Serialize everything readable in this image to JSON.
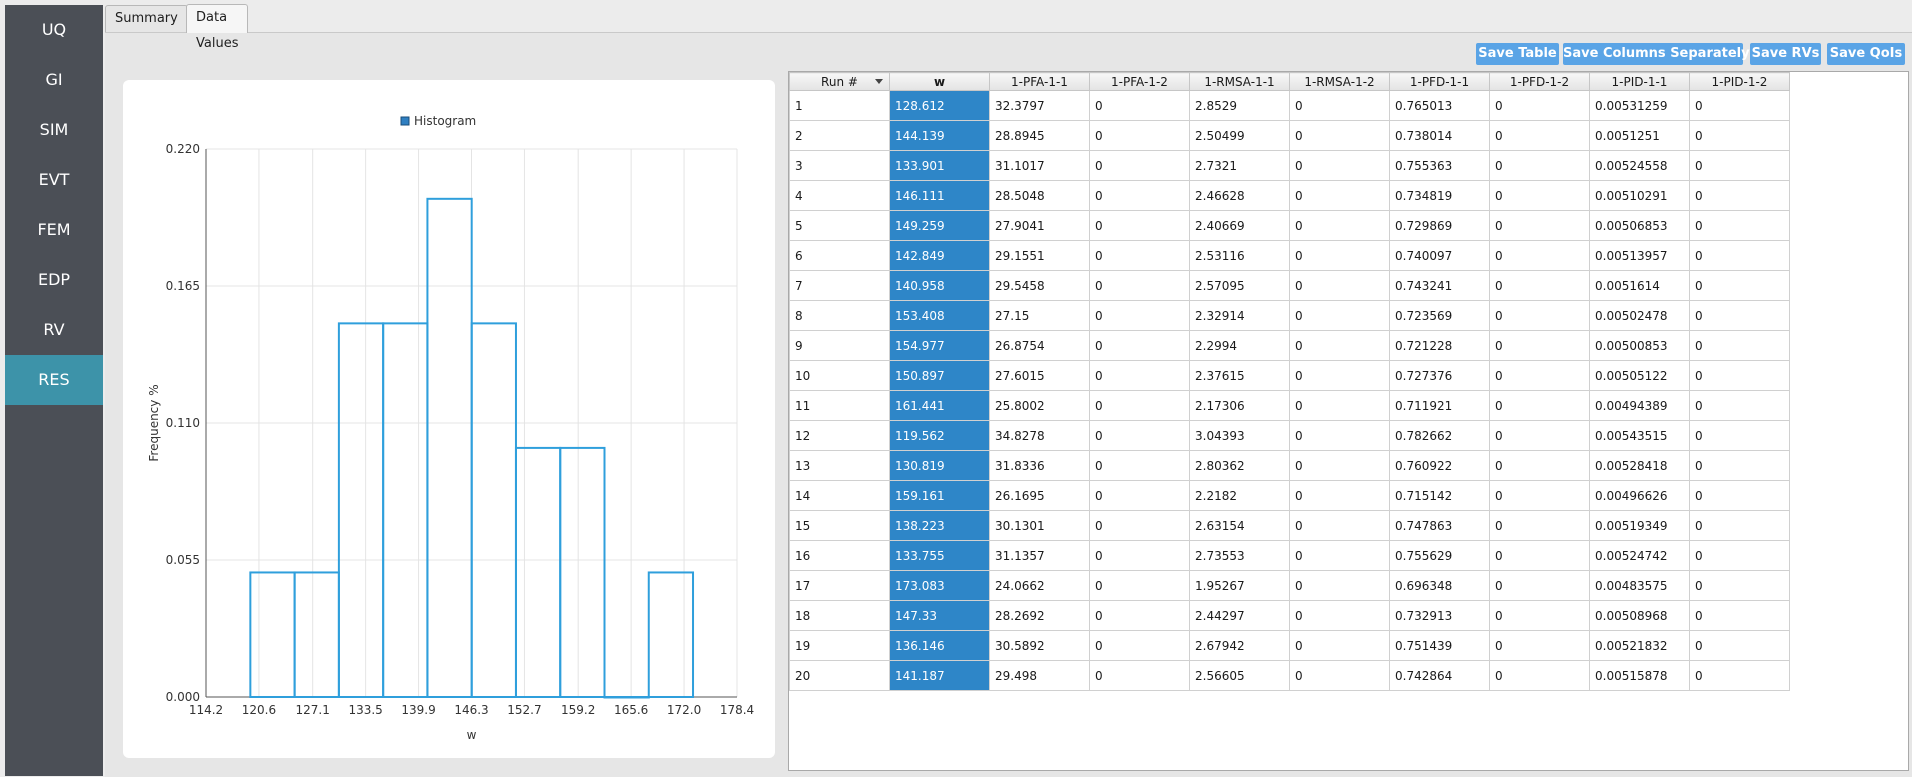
{
  "sidebar": {
    "items": [
      {
        "label": "UQ"
      },
      {
        "label": "GI"
      },
      {
        "label": "SIM"
      },
      {
        "label": "EVT"
      },
      {
        "label": "FEM"
      },
      {
        "label": "EDP"
      },
      {
        "label": "RV"
      },
      {
        "label": "RES"
      }
    ],
    "active": "RES",
    "colors": {
      "background": "#4b4f56",
      "active": "#3d93a9"
    }
  },
  "tabs": [
    {
      "label": "Summary",
      "selected": false
    },
    {
      "label": "Data Values",
      "selected": true
    }
  ],
  "toolbar": {
    "save_table": "Save Table",
    "save_columns": "Save Columns Separately",
    "save_rvs": "Save RVs",
    "save_qois": "Save QoIs"
  },
  "chart_data": {
    "type": "bar",
    "title": "",
    "legend": [
      "Histogram"
    ],
    "legend_position": "top-center",
    "xlabel": "w",
    "ylabel": "Frequency %",
    "xlim": [
      114.2,
      178.4
    ],
    "ylim": [
      0,
      0.22
    ],
    "x_ticks": [
      "114.2",
      "120.6",
      "127.1",
      "133.5",
      "139.9",
      "146.3",
      "152.7",
      "159.2",
      "165.6",
      "172.0",
      "178.4"
    ],
    "y_ticks": [
      "0.000",
      "0.055",
      "0.110",
      "0.165",
      "0.220"
    ],
    "bin_edges": [
      119.562,
      124.914,
      130.267,
      135.619,
      140.971,
      146.323,
      151.676,
      157.028,
      162.38,
      167.732,
      173.083
    ],
    "values": [
      0.05,
      0.05,
      0.15,
      0.15,
      0.2,
      0.15,
      0.1,
      0.1,
      0.0,
      0.05
    ],
    "grid": true,
    "series_color": "#2f9fdc"
  },
  "table": {
    "columns": [
      "Run #",
      "w",
      "1-PFA-1-1",
      "1-PFA-1-2",
      "1-RMSA-1-1",
      "1-RMSA-1-2",
      "1-PFD-1-1",
      "1-PFD-1-2",
      "1-PID-1-1",
      "1-PID-1-2"
    ],
    "selected_column": "w",
    "rows": [
      [
        "1",
        "128.612",
        "32.3797",
        "0",
        "2.8529",
        "0",
        "0.765013",
        "0",
        "0.00531259",
        "0"
      ],
      [
        "2",
        "144.139",
        "28.8945",
        "0",
        "2.50499",
        "0",
        "0.738014",
        "0",
        "0.0051251",
        "0"
      ],
      [
        "3",
        "133.901",
        "31.1017",
        "0",
        "2.7321",
        "0",
        "0.755363",
        "0",
        "0.00524558",
        "0"
      ],
      [
        "4",
        "146.111",
        "28.5048",
        "0",
        "2.46628",
        "0",
        "0.734819",
        "0",
        "0.00510291",
        "0"
      ],
      [
        "5",
        "149.259",
        "27.9041",
        "0",
        "2.40669",
        "0",
        "0.729869",
        "0",
        "0.00506853",
        "0"
      ],
      [
        "6",
        "142.849",
        "29.1551",
        "0",
        "2.53116",
        "0",
        "0.740097",
        "0",
        "0.00513957",
        "0"
      ],
      [
        "7",
        "140.958",
        "29.5458",
        "0",
        "2.57095",
        "0",
        "0.743241",
        "0",
        "0.0051614",
        "0"
      ],
      [
        "8",
        "153.408",
        "27.15",
        "0",
        "2.32914",
        "0",
        "0.723569",
        "0",
        "0.00502478",
        "0"
      ],
      [
        "9",
        "154.977",
        "26.8754",
        "0",
        "2.2994",
        "0",
        "0.721228",
        "0",
        "0.00500853",
        "0"
      ],
      [
        "10",
        "150.897",
        "27.6015",
        "0",
        "2.37615",
        "0",
        "0.727376",
        "0",
        "0.00505122",
        "0"
      ],
      [
        "11",
        "161.441",
        "25.8002",
        "0",
        "2.17306",
        "0",
        "0.711921",
        "0",
        "0.00494389",
        "0"
      ],
      [
        "12",
        "119.562",
        "34.8278",
        "0",
        "3.04393",
        "0",
        "0.782662",
        "0",
        "0.00543515",
        "0"
      ],
      [
        "13",
        "130.819",
        "31.8336",
        "0",
        "2.80362",
        "0",
        "0.760922",
        "0",
        "0.00528418",
        "0"
      ],
      [
        "14",
        "159.161",
        "26.1695",
        "0",
        "2.2182",
        "0",
        "0.715142",
        "0",
        "0.00496626",
        "0"
      ],
      [
        "15",
        "138.223",
        "30.1301",
        "0",
        "2.63154",
        "0",
        "0.747863",
        "0",
        "0.00519349",
        "0"
      ],
      [
        "16",
        "133.755",
        "31.1357",
        "0",
        "2.73553",
        "0",
        "0.755629",
        "0",
        "0.00524742",
        "0"
      ],
      [
        "17",
        "173.083",
        "24.0662",
        "0",
        "1.95267",
        "0",
        "0.696348",
        "0",
        "0.00483575",
        "0"
      ],
      [
        "18",
        "147.33",
        "28.2692",
        "0",
        "2.44297",
        "0",
        "0.732913",
        "0",
        "0.00508968",
        "0"
      ],
      [
        "19",
        "136.146",
        "30.5892",
        "0",
        "2.67942",
        "0",
        "0.751439",
        "0",
        "0.00521832",
        "0"
      ],
      [
        "20",
        "141.187",
        "29.498",
        "0",
        "2.56605",
        "0",
        "0.742864",
        "0",
        "0.00515878",
        "0"
      ]
    ]
  }
}
